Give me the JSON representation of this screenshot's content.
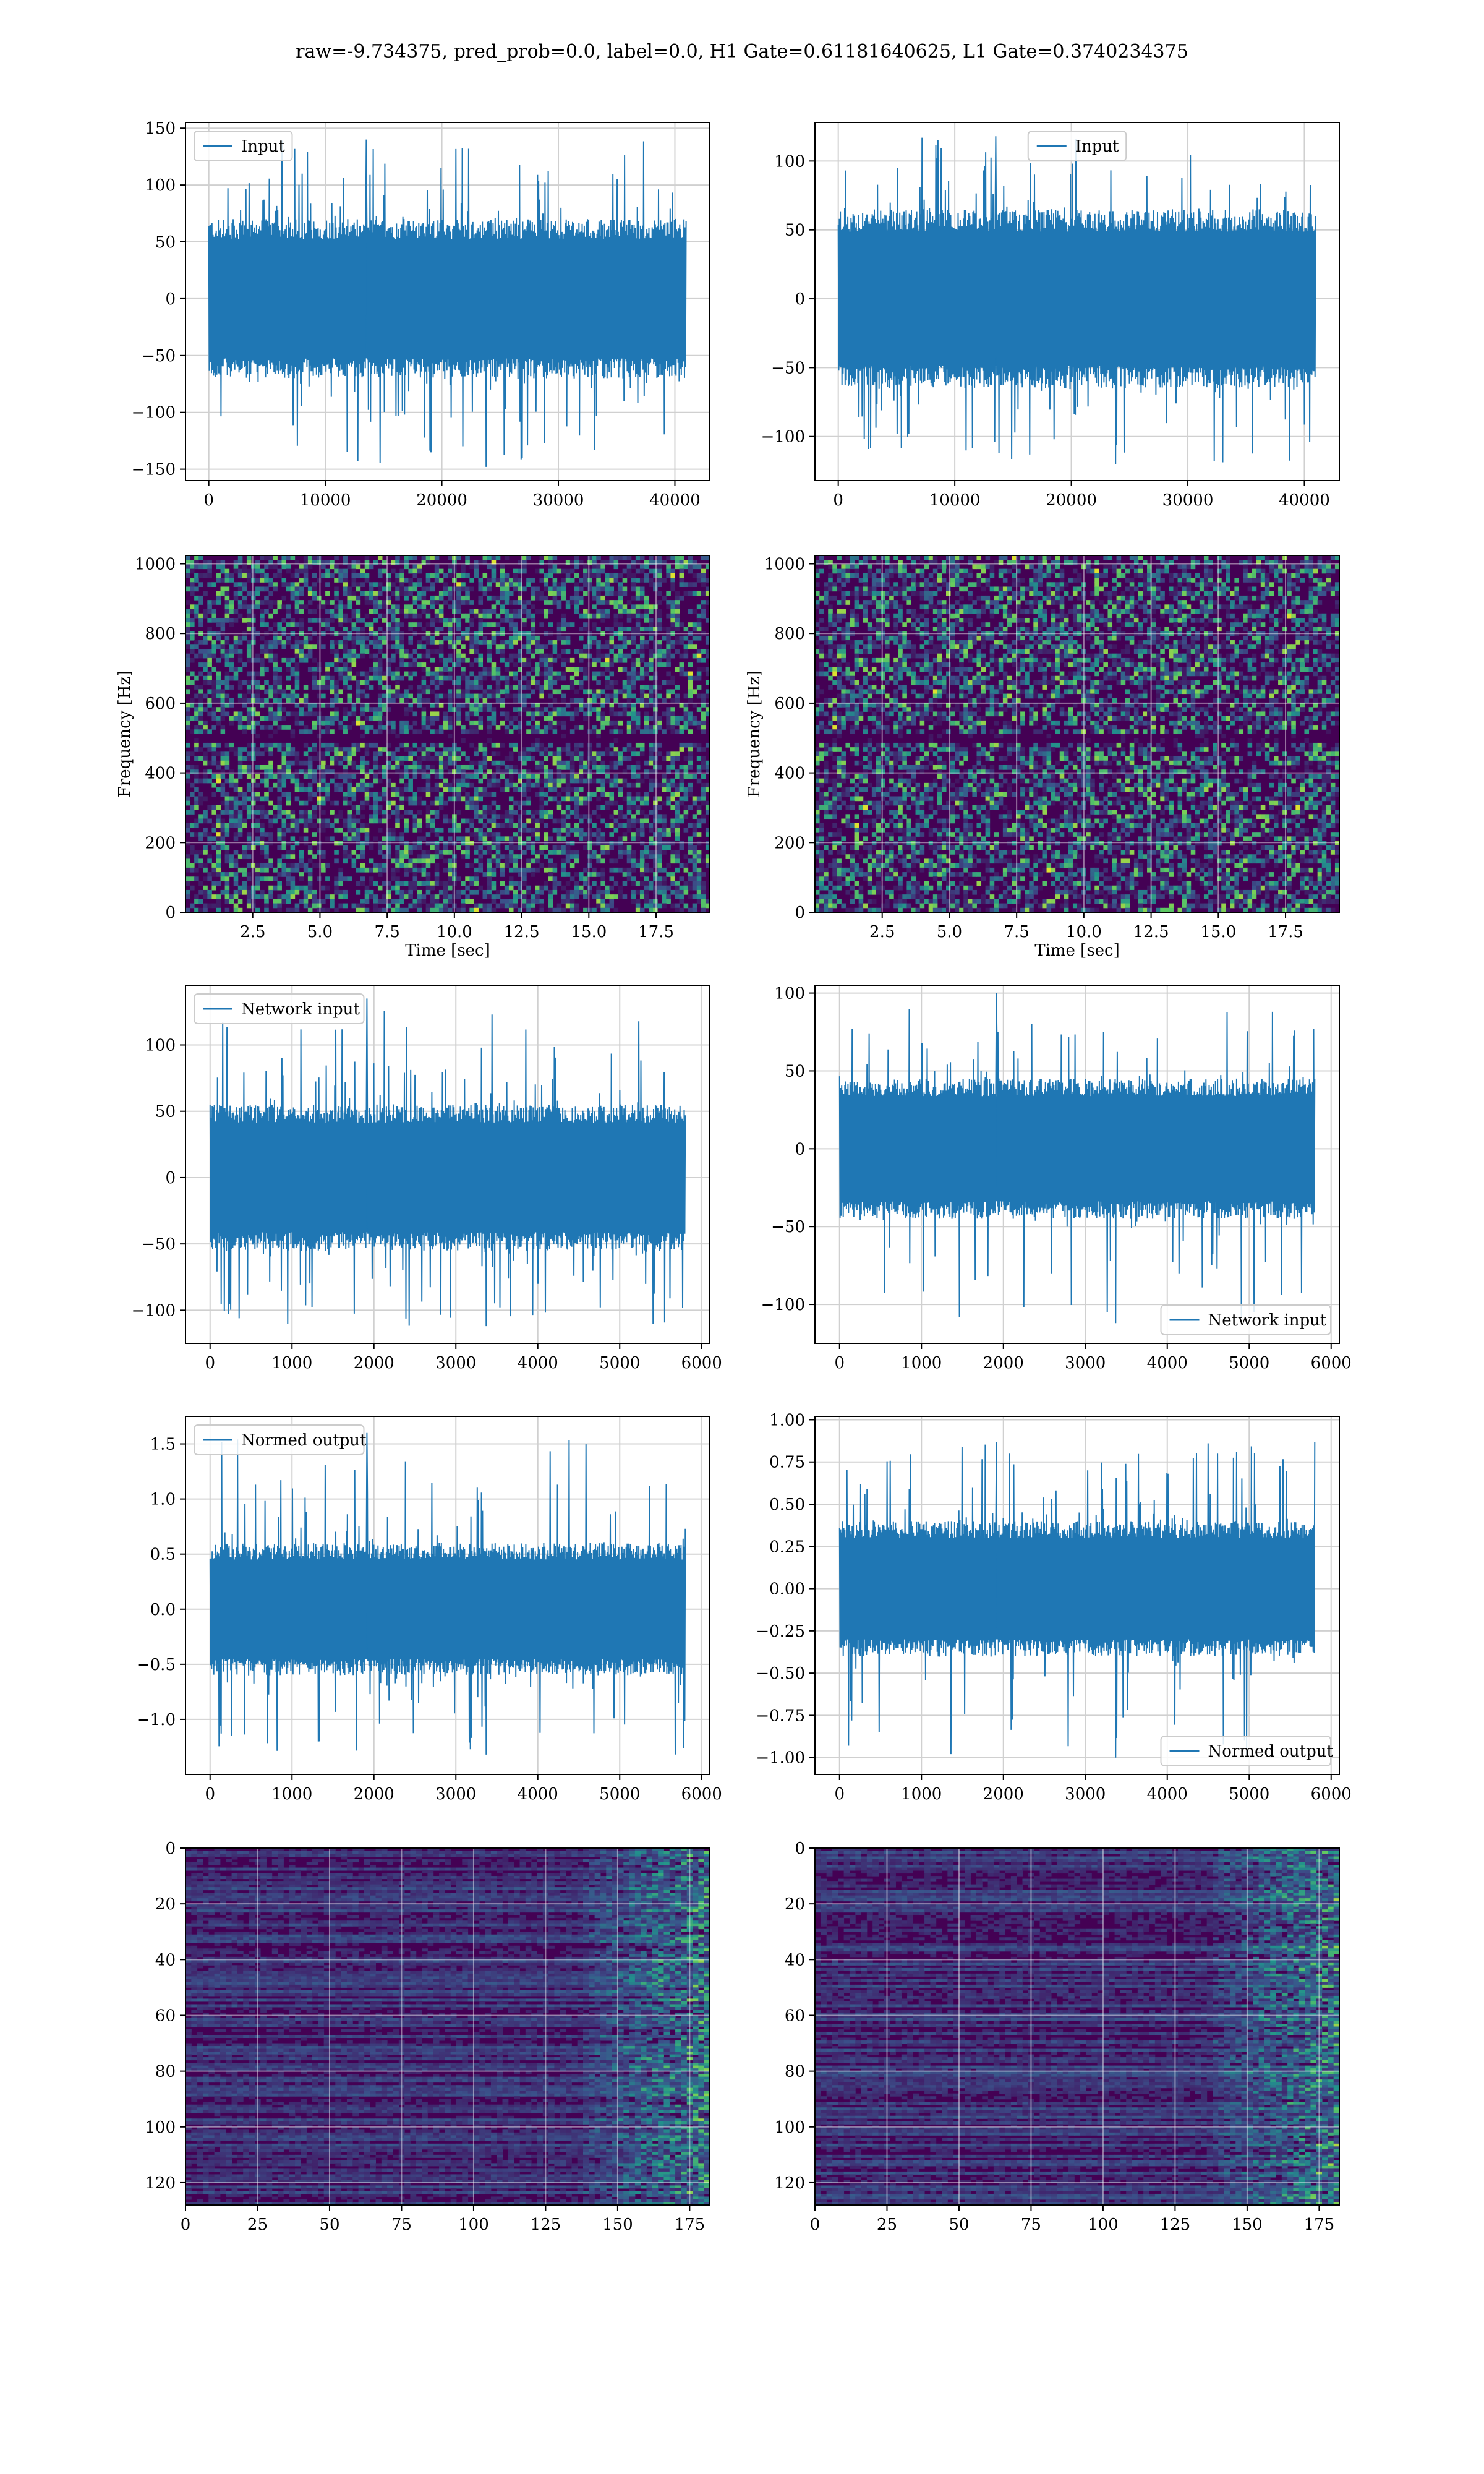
{
  "figure": {
    "title": "raw=-9.734375, pred_prob=0.0, label=0.0, H1 Gate=0.61181640625, L1 Gate=0.3740234375"
  },
  "colors": {
    "line": "#1f77b4",
    "axes": "#000000",
    "grid": "#d0d0d0",
    "heat_low": "#440154",
    "heat_mid": "#21918c",
    "heat_high": "#fde725"
  },
  "chart_data": [
    {
      "id": "h1-input",
      "type": "line",
      "row": 0,
      "col": 0,
      "series": [
        {
          "name": "Input",
          "envelope": {
            "x_start": 0,
            "x_end": 40960,
            "core": 70,
            "max_peak": 140,
            "min_peak": -148
          }
        }
      ],
      "xlim": [
        -2000,
        43000
      ],
      "ylim": [
        -160,
        155
      ],
      "xticks": [
        0,
        10000,
        20000,
        30000,
        40000
      ],
      "yticks": [
        -150,
        -100,
        -50,
        0,
        50,
        100,
        150
      ],
      "legend": "top-left",
      "grid": true
    },
    {
      "id": "l1-input",
      "type": "line",
      "row": 0,
      "col": 1,
      "series": [
        {
          "name": "Input",
          "envelope": {
            "x_start": 0,
            "x_end": 40960,
            "core": 65,
            "max_peak": 118,
            "min_peak": -120
          }
        }
      ],
      "xlim": [
        -2000,
        43000
      ],
      "ylim": [
        -132,
        128
      ],
      "xticks": [
        0,
        10000,
        20000,
        30000,
        40000
      ],
      "yticks": [
        -100,
        -50,
        0,
        50,
        100
      ],
      "legend": "top-center",
      "grid": true
    },
    {
      "id": "h1-spectrogram",
      "type": "heatmap",
      "row": 1,
      "col": 0,
      "xlabel": "Time [sec]",
      "ylabel": "Frequency [Hz]",
      "xlim": [
        0,
        19.5
      ],
      "ylim": [
        0,
        1024
      ],
      "xticks": [
        2.5,
        5.0,
        7.5,
        10.0,
        12.5,
        15.0,
        17.5
      ],
      "yticks": [
        0,
        200,
        400,
        600,
        800,
        1000
      ],
      "grid": true,
      "dark_band_hz": 500,
      "colormap": "viridis"
    },
    {
      "id": "l1-spectrogram",
      "type": "heatmap",
      "row": 1,
      "col": 1,
      "xlabel": "Time [sec]",
      "ylabel": "Frequency [Hz]",
      "xlim": [
        0,
        19.5
      ],
      "ylim": [
        0,
        1024
      ],
      "xticks": [
        2.5,
        5.0,
        7.5,
        10.0,
        12.5,
        15.0,
        17.5
      ],
      "yticks": [
        0,
        200,
        400,
        600,
        800,
        1000
      ],
      "grid": true,
      "dark_band_hz": 500,
      "colormap": "viridis"
    },
    {
      "id": "h1-network-input",
      "type": "line",
      "row": 2,
      "col": 0,
      "series": [
        {
          "name": "Network input",
          "envelope": {
            "x_start": 0,
            "x_end": 5800,
            "core": 55,
            "max_peak": 135,
            "min_peak": -112
          }
        }
      ],
      "xlim": [
        -300,
        6100
      ],
      "ylim": [
        -125,
        145
      ],
      "xticks": [
        0,
        1000,
        2000,
        3000,
        4000,
        5000,
        6000
      ],
      "yticks": [
        -100,
        -50,
        0,
        50,
        100
      ],
      "legend": "top-left",
      "grid": true
    },
    {
      "id": "l1-network-input",
      "type": "line",
      "row": 2,
      "col": 1,
      "series": [
        {
          "name": "Network input",
          "envelope": {
            "x_start": 0,
            "x_end": 5800,
            "core": 45,
            "max_peak": 100,
            "min_peak": -112
          }
        }
      ],
      "xlim": [
        -300,
        6100
      ],
      "ylim": [
        -125,
        105
      ],
      "xticks": [
        0,
        1000,
        2000,
        3000,
        4000,
        5000,
        6000
      ],
      "yticks": [
        -100,
        -50,
        0,
        50,
        100
      ],
      "legend": "bottom-right",
      "grid": true
    },
    {
      "id": "h1-normed-output",
      "type": "line",
      "row": 3,
      "col": 0,
      "series": [
        {
          "name": "Normed output",
          "envelope": {
            "x_start": 0,
            "x_end": 5800,
            "core": 0.6,
            "max_peak": 1.6,
            "min_peak": -1.32
          }
        }
      ],
      "xlim": [
        -300,
        6100
      ],
      "ylim": [
        -1.5,
        1.75
      ],
      "xticks": [
        0,
        1000,
        2000,
        3000,
        4000,
        5000,
        6000
      ],
      "yticks": [
        -1.0,
        -0.5,
        0.0,
        0.5,
        1.0,
        1.5
      ],
      "legend": "top-left",
      "grid": true
    },
    {
      "id": "l1-normed-output",
      "type": "line",
      "row": 3,
      "col": 1,
      "series": [
        {
          "name": "Normed output",
          "envelope": {
            "x_start": 0,
            "x_end": 5800,
            "core": 0.4,
            "max_peak": 0.87,
            "min_peak": -1.0
          }
        }
      ],
      "xlim": [
        -300,
        6100
      ],
      "ylim": [
        -1.1,
        1.02
      ],
      "xticks": [
        0,
        1000,
        2000,
        3000,
        4000,
        5000,
        6000
      ],
      "yticks": [
        -1.0,
        -0.75,
        -0.5,
        -0.25,
        0.0,
        0.25,
        0.5,
        0.75,
        1.0
      ],
      "legend": "bottom-right",
      "grid": true
    },
    {
      "id": "h1-features",
      "type": "heatmap",
      "row": 4,
      "col": 0,
      "xlim": [
        0,
        182
      ],
      "ylim": [
        128,
        0
      ],
      "xticks": [
        0,
        25,
        50,
        75,
        100,
        125,
        150,
        175
      ],
      "yticks": [
        0,
        20,
        40,
        60,
        80,
        100,
        120
      ],
      "grid": true,
      "colormap": "viridis"
    },
    {
      "id": "l1-features",
      "type": "heatmap",
      "row": 4,
      "col": 1,
      "xlim": [
        0,
        182
      ],
      "ylim": [
        128,
        0
      ],
      "xticks": [
        0,
        25,
        50,
        75,
        100,
        125,
        150,
        175
      ],
      "yticks": [
        0,
        20,
        40,
        60,
        80,
        100,
        120
      ],
      "grid": true,
      "colormap": "viridis"
    }
  ]
}
